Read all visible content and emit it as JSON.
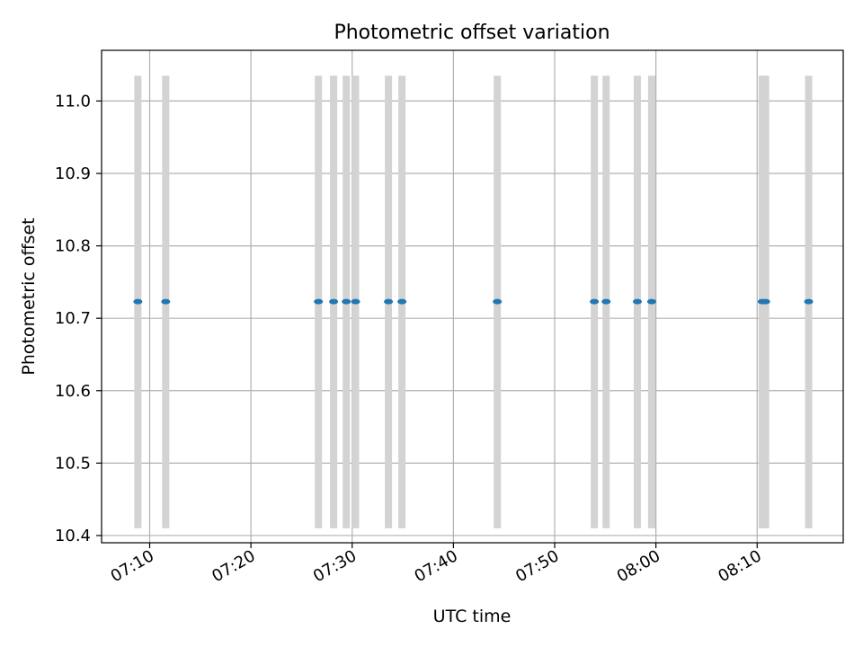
{
  "chart_data": {
    "type": "scatter",
    "title": "Photometric offset variation",
    "xlabel": "UTC time",
    "ylabel": "Photometric offset",
    "xlim": [
      "07:05:15",
      "08:18:30"
    ],
    "ylim": [
      10.39,
      11.07
    ],
    "x_ticks": [
      "07:10",
      "07:20",
      "07:30",
      "07:40",
      "07:50",
      "08:00",
      "08:10"
    ],
    "y_ticks": [
      "10.4",
      "10.5",
      "10.6",
      "10.7",
      "10.8",
      "10.9",
      "11.0"
    ],
    "grid": true,
    "marker_color": "#1f77b4",
    "error_bar_color": "#d3d3d3",
    "points": [
      {
        "x": "07:08:50",
        "y": 10.723,
        "y_low": 10.41,
        "y_high": 11.035
      },
      {
        "x": "07:11:35",
        "y": 10.723,
        "y_low": 10.41,
        "y_high": 11.035
      },
      {
        "x": "07:26:40",
        "y": 10.723,
        "y_low": 10.41,
        "y_high": 11.035
      },
      {
        "x": "07:28:10",
        "y": 10.723,
        "y_low": 10.41,
        "y_high": 11.035
      },
      {
        "x": "07:29:25",
        "y": 10.723,
        "y_low": 10.41,
        "y_high": 11.035
      },
      {
        "x": "07:30:20",
        "y": 10.723,
        "y_low": 10.41,
        "y_high": 11.035
      },
      {
        "x": "07:33:35",
        "y": 10.723,
        "y_low": 10.41,
        "y_high": 11.035
      },
      {
        "x": "07:34:55",
        "y": 10.723,
        "y_low": 10.41,
        "y_high": 11.035
      },
      {
        "x": "07:44:20",
        "y": 10.723,
        "y_low": 10.41,
        "y_high": 11.035
      },
      {
        "x": "07:53:55",
        "y": 10.723,
        "y_low": 10.41,
        "y_high": 11.035
      },
      {
        "x": "07:55:05",
        "y": 10.723,
        "y_low": 10.41,
        "y_high": 11.035
      },
      {
        "x": "07:58:10",
        "y": 10.723,
        "y_low": 10.41,
        "y_high": 11.035
      },
      {
        "x": "07:59:35",
        "y": 10.723,
        "y_low": 10.41,
        "y_high": 11.035
      },
      {
        "x": "08:10:30",
        "y": 10.723,
        "y_low": 10.41,
        "y_high": 11.035
      },
      {
        "x": "08:10:50",
        "y": 10.723,
        "y_low": 10.41,
        "y_high": 11.035
      },
      {
        "x": "08:15:05",
        "y": 10.723,
        "y_low": 10.41,
        "y_high": 11.035
      }
    ]
  }
}
